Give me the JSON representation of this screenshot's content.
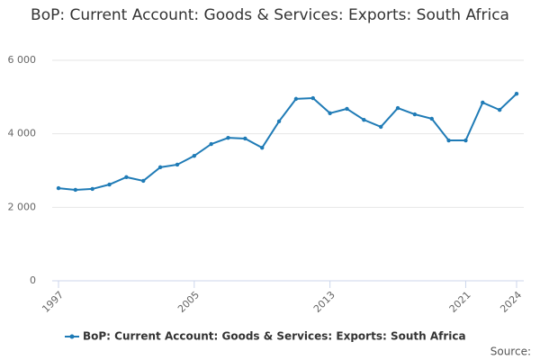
{
  "chart_data": {
    "type": "line",
    "title": "BoP: Current Account: Goods & Services: Exports: South Africa",
    "x": [
      1997,
      1998,
      1999,
      2000,
      2001,
      2002,
      2003,
      2004,
      2005,
      2006,
      2007,
      2008,
      2009,
      2010,
      2011,
      2012,
      2013,
      2014,
      2015,
      2016,
      2017,
      2018,
      2019,
      2020,
      2021,
      2022,
      2023,
      2024
    ],
    "series": [
      {
        "name": "BoP: Current Account: Goods & Services: Exports: South Africa",
        "color": "#1f7bb6",
        "values": [
          2520,
          2475,
          2500,
          2620,
          2820,
          2720,
          3090,
          3160,
          3400,
          3720,
          3890,
          3870,
          3620,
          4340,
          4950,
          4970,
          4560,
          4680,
          4380,
          4190,
          4700,
          4530,
          4410,
          3820,
          3820,
          4850,
          4650,
          5090
        ]
      }
    ],
    "xlim": [
      1997,
      2024
    ],
    "xticks": [
      1997,
      2005,
      2013,
      2021,
      2024
    ],
    "ylim": [
      0,
      6000
    ],
    "yticks": [
      0,
      {
        "value": 2000,
        "label": "2 000"
      },
      {
        "value": 4000,
        "label": "4 000"
      },
      {
        "value": 6000,
        "label": "6 000"
      }
    ],
    "grid": true,
    "legend": "bottom",
    "source": "Source:"
  }
}
